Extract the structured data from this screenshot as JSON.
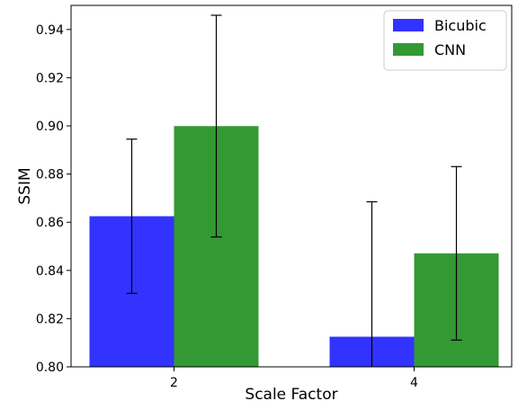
{
  "chart_data": {
    "type": "bar",
    "title": "",
    "xlabel": "Scale Factor",
    "ylabel": "SSIM",
    "categories": [
      "2",
      "4"
    ],
    "ylim": [
      0.8,
      0.95
    ],
    "yticks": [
      "0.80",
      "0.82",
      "0.84",
      "0.86",
      "0.88",
      "0.90",
      "0.92",
      "0.94"
    ],
    "ytick_values": [
      0.8,
      0.82,
      0.84,
      0.86,
      0.88,
      0.9,
      0.92,
      0.94
    ],
    "series": [
      {
        "name": "Bicubic",
        "color": "#3333ff",
        "values": [
          0.8625,
          0.8125
        ],
        "errors": [
          0.032,
          0.056
        ]
      },
      {
        "name": "CNN",
        "color": "#339933",
        "values": [
          0.8999,
          0.8471
        ],
        "errors": [
          0.046,
          0.036
        ]
      }
    ],
    "grid": false,
    "legend_position": "top-right"
  }
}
